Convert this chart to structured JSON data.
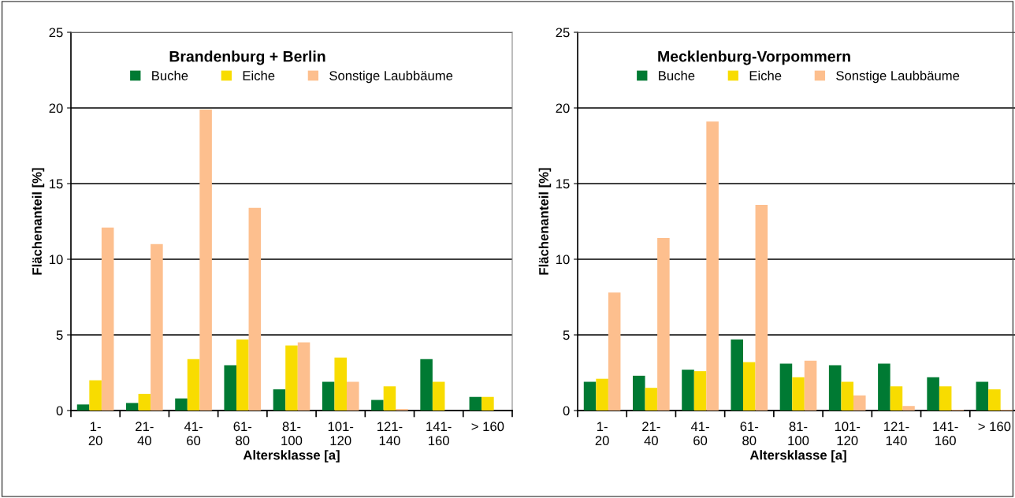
{
  "chart_data": [
    {
      "type": "bar",
      "title": "Brandenburg + Berlin",
      "xlabel": "Altersklasse [a]",
      "ylabel": "Flächenanteil [%]",
      "categories": [
        "1-\n20",
        "21-\n40",
        "41-\n60",
        "61-\n80",
        "81-\n100",
        "101-\n120",
        "121-\n140",
        "141-\n160",
        "> 160"
      ],
      "ylim": [
        0,
        25
      ],
      "yticks": [
        0,
        5,
        10,
        15,
        20,
        25
      ],
      "grid": "y",
      "legend": "top",
      "series": [
        {
          "name": "Buche",
          "color": "#007a33",
          "values": [
            0.4,
            0.5,
            0.8,
            3.0,
            1.4,
            1.9,
            0.7,
            3.4,
            0.9
          ]
        },
        {
          "name": "Eiche",
          "color": "#f8dc00",
          "values": [
            2.0,
            1.1,
            3.4,
            4.7,
            4.3,
            3.5,
            1.6,
            1.9,
            0.9
          ]
        },
        {
          "name": "Sonstige Laubbäume",
          "color": "#fdbf8e",
          "values": [
            12.1,
            11.0,
            19.9,
            13.4,
            4.5,
            1.9,
            0.1,
            0,
            0
          ]
        }
      ]
    },
    {
      "type": "bar",
      "title": "Mecklenburg-Vorpommern",
      "xlabel": "Altersklasse [a]",
      "ylabel": "Flächenanteil [%]",
      "categories": [
        "1-\n20",
        "21-\n40",
        "41-\n60",
        "61-\n80",
        "81-\n100",
        "101-\n120",
        "121-\n140",
        "141-\n160",
        "> 160"
      ],
      "ylim": [
        0,
        25
      ],
      "yticks": [
        0,
        5,
        10,
        15,
        20,
        25
      ],
      "grid": "y",
      "legend": "top",
      "series": [
        {
          "name": "Buche",
          "color": "#007a33",
          "values": [
            1.9,
            2.3,
            2.7,
            4.7,
            3.1,
            3.0,
            3.1,
            2.2,
            1.9
          ]
        },
        {
          "name": "Eiche",
          "color": "#f8dc00",
          "values": [
            2.1,
            1.5,
            2.6,
            3.2,
            2.2,
            1.9,
            1.6,
            1.6,
            1.4
          ]
        },
        {
          "name": "Sonstige Laubbäume",
          "color": "#fdbf8e",
          "values": [
            7.8,
            11.4,
            19.1,
            13.6,
            3.3,
            1.0,
            0.3,
            0.05,
            0.05
          ]
        }
      ]
    }
  ]
}
